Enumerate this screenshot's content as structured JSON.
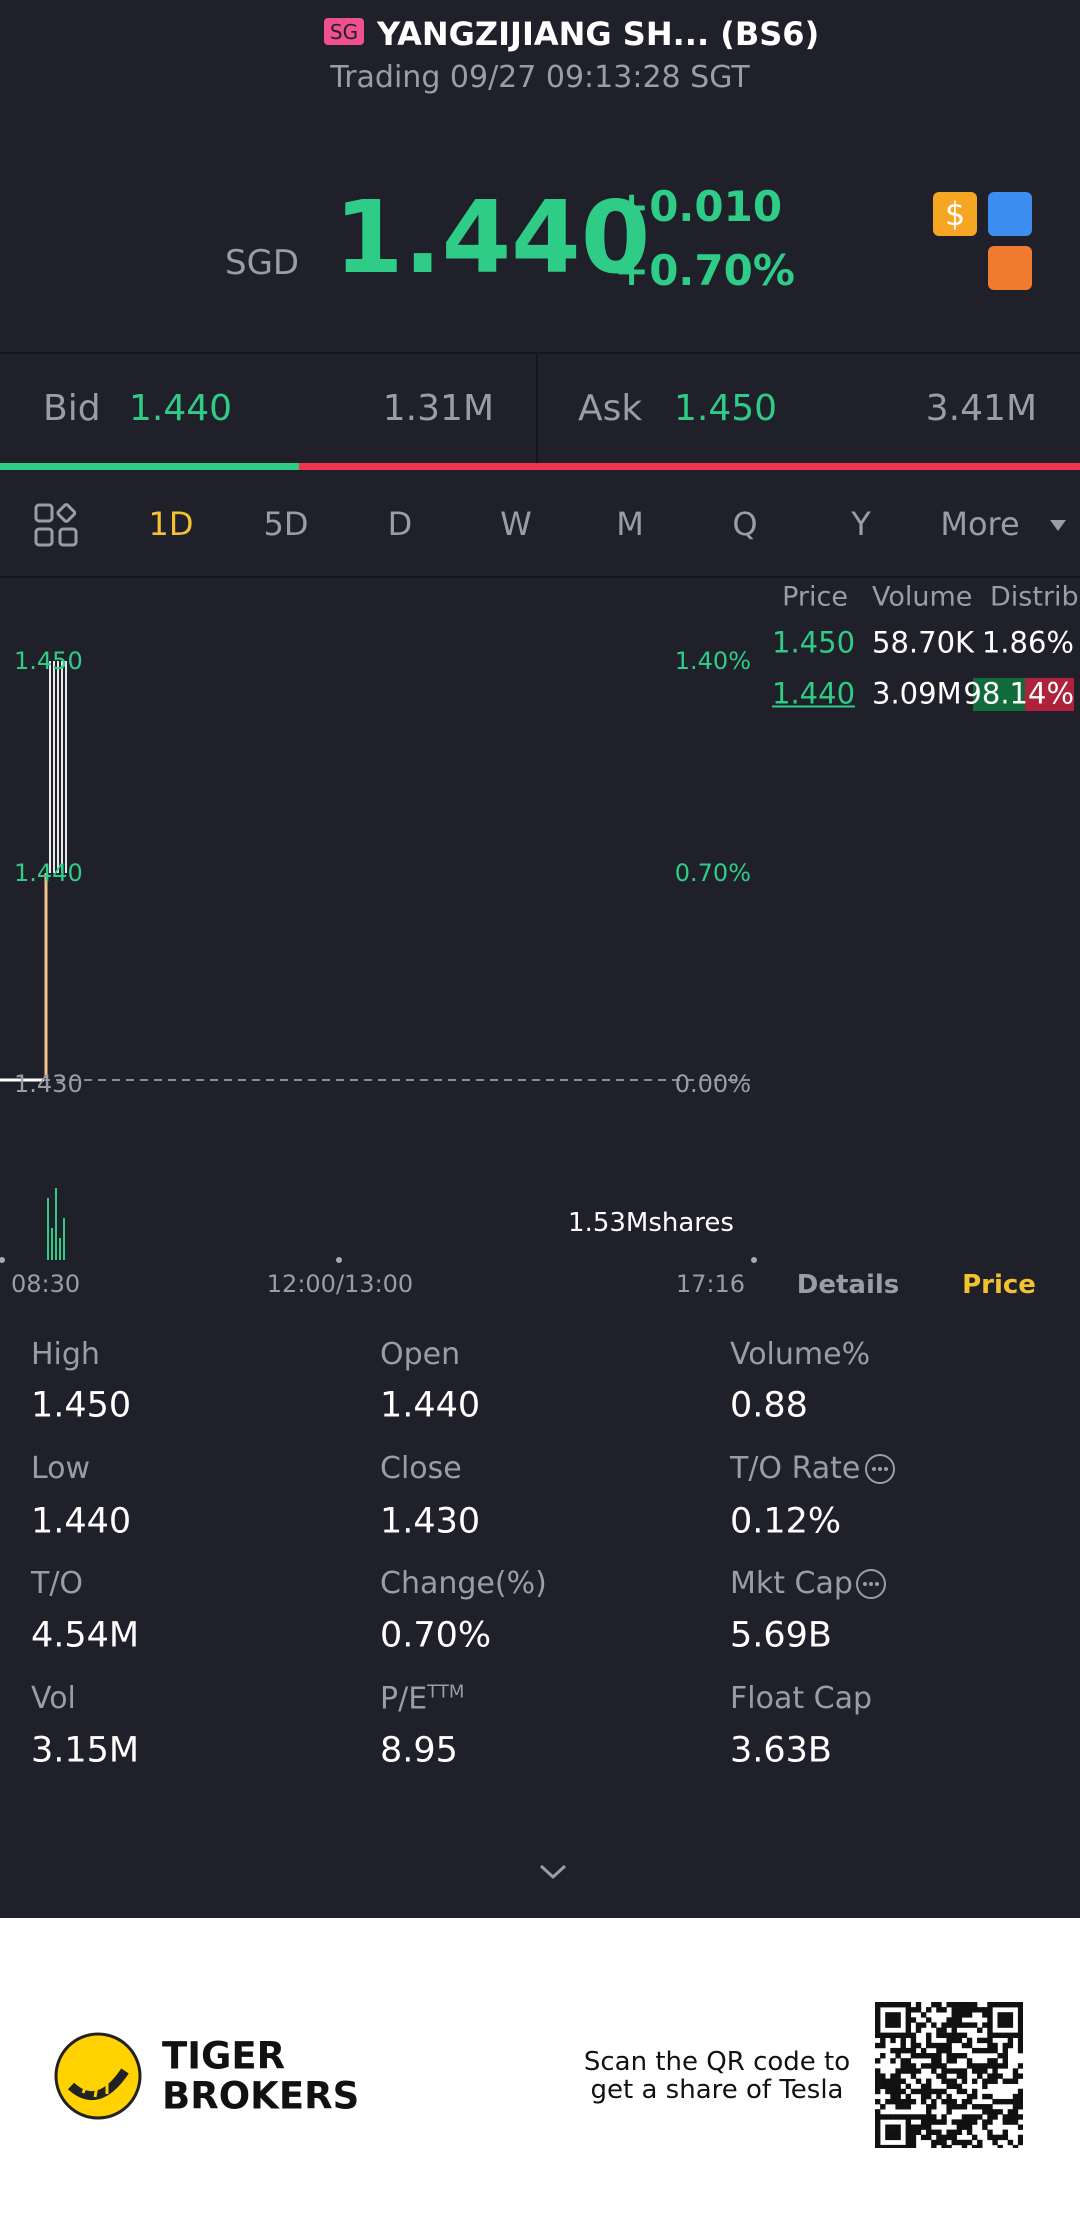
{
  "header": {
    "badge": "SG",
    "title": "YANGZIJIANG SH... (BS6)",
    "status": "Trading 09/27 09:13:28 SGT"
  },
  "quote": {
    "currency": "SGD",
    "price": "1.440",
    "change": "+0.010",
    "change_pct": "+0.70%"
  },
  "bid_ask": {
    "bid_label": "Bid",
    "bid_price": "1.440",
    "bid_size": "1.31M",
    "ask_label": "Ask",
    "ask_price": "1.450",
    "ask_size": "3.41M"
  },
  "tabs": [
    "1D",
    "5D",
    "D",
    "W",
    "M",
    "Q",
    "Y",
    "More"
  ],
  "chart": {
    "price_labels": [
      "1.450",
      "1.440",
      "1.430"
    ],
    "pct_labels": [
      "1.40%",
      "0.70%",
      "0.00%"
    ],
    "time_labels": [
      "08:30",
      "12:00/13:00",
      "17:16"
    ],
    "volume_label": "1.53Mshares"
  },
  "order_book": {
    "headers": [
      "Price",
      "Volume",
      "Distrib"
    ],
    "rows": [
      [
        "1.450",
        "58.70K",
        "1.86%"
      ],
      [
        "1.440",
        "3.09M",
        "98.14%"
      ]
    ]
  },
  "detail_tabs": [
    "Details",
    "Price"
  ],
  "stats": [
    {
      "label": "High",
      "value": "1.450"
    },
    {
      "label": "Open",
      "value": "1.440"
    },
    {
      "label": "Volume%",
      "value": "0.88"
    },
    {
      "label": "Low",
      "value": "1.440"
    },
    {
      "label": "Close",
      "value": "1.430"
    },
    {
      "label": "T/O Rate",
      "value": "0.12%"
    },
    {
      "label": "T/O",
      "value": "4.54M"
    },
    {
      "label": "Change(%)",
      "value": "0.70%"
    },
    {
      "label": "Mkt Cap",
      "value": "5.69B"
    },
    {
      "label": "Vol",
      "value": "3.15M"
    },
    {
      "label": "P/E",
      "sup": "TTM",
      "value": "8.95"
    },
    {
      "label": "Float Cap",
      "value": "3.63B"
    }
  ],
  "footer": {
    "brand": [
      "TIGER",
      "BROKERS"
    ],
    "promo": [
      "Scan the QR code to",
      "get a share of Tesla"
    ]
  }
}
